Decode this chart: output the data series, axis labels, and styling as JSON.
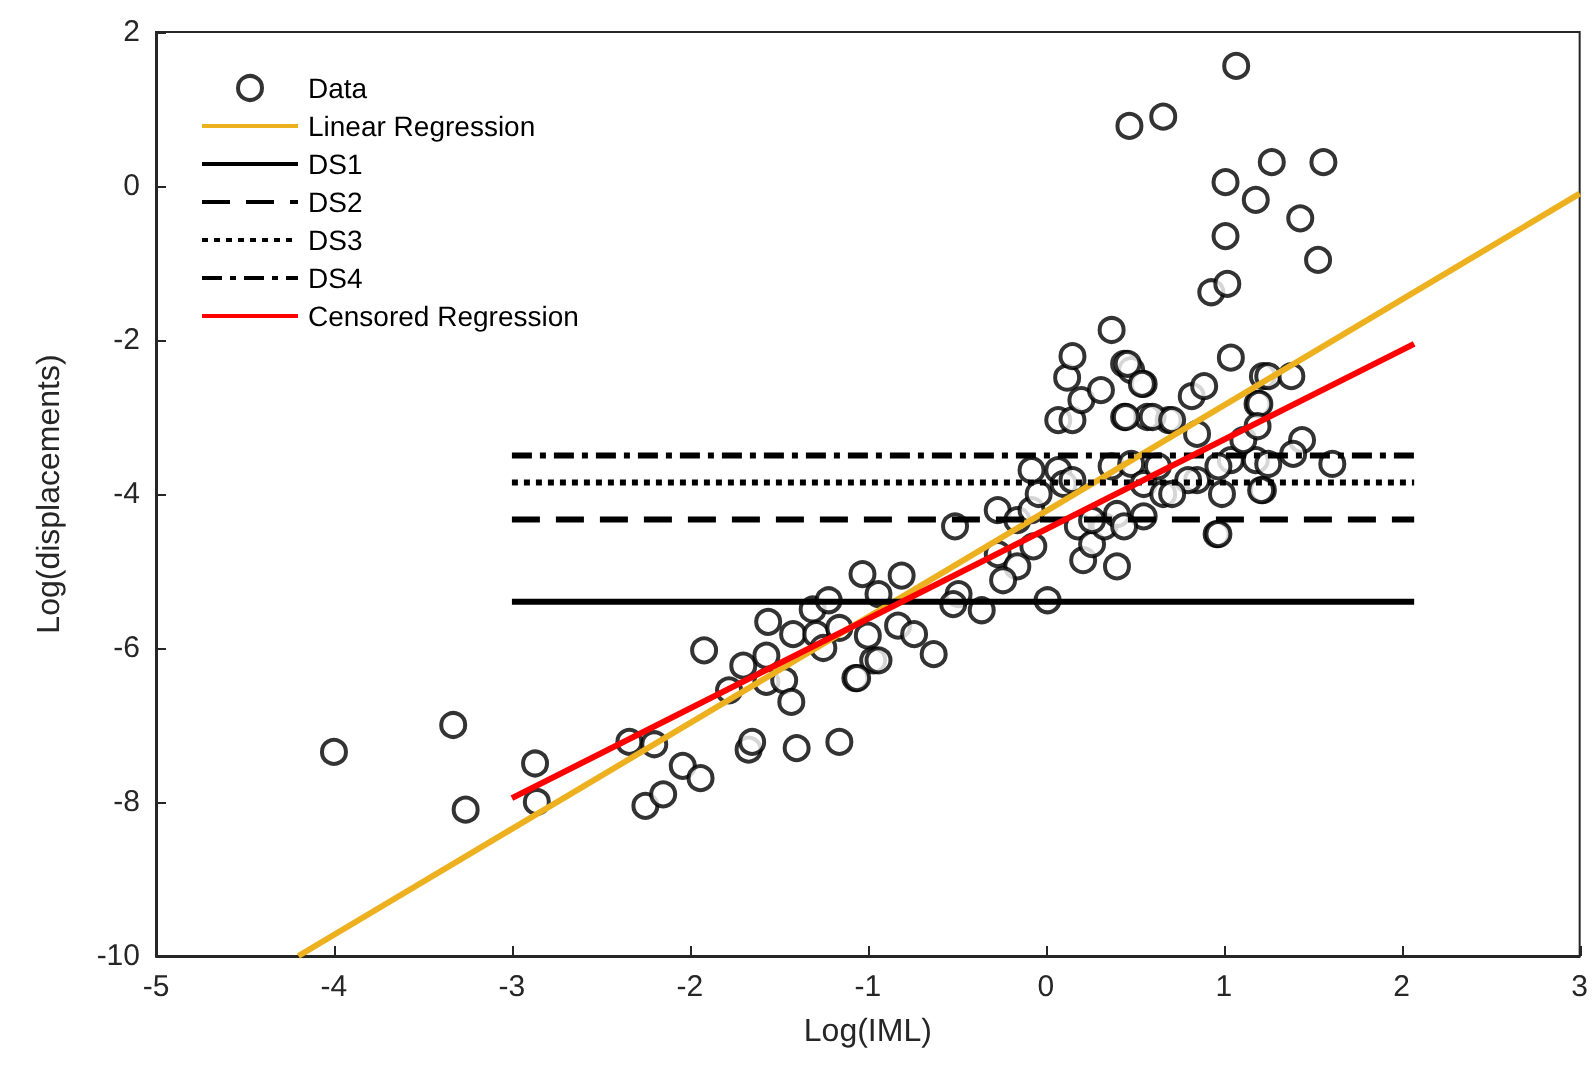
{
  "chart_data": {
    "type": "scatter",
    "xlabel": "Log(IML)",
    "ylabel": "Log(displacements)",
    "xlim": [
      -5,
      3
    ],
    "ylim": [
      -10,
      2
    ],
    "xticks": [
      -5,
      -4,
      -3,
      -2,
      -1,
      0,
      1,
      2,
      3
    ],
    "yticks": [
      -10,
      -8,
      -6,
      -4,
      -2,
      0,
      2
    ],
    "grid": false,
    "legend": "top left",
    "series": [
      {
        "name": "Data",
        "marker": "circle",
        "color": "#000000",
        "x": [
          -4.0,
          -3.33,
          -3.26,
          -2.87,
          -2.86,
          -2.34,
          -2.2,
          -2.25,
          -2.15,
          -2.04,
          -1.94,
          -1.92,
          -1.78,
          -1.7,
          -1.67,
          -1.65,
          -1.56,
          -1.57,
          -1.57,
          -1.47,
          -1.43,
          -1.4,
          -1.42,
          -1.31,
          -1.29,
          -1.25,
          -1.16,
          -1.07,
          -1.0,
          -0.97,
          -1.03,
          -1.22,
          -1.16,
          -0.94,
          -0.81,
          -0.83,
          -0.74,
          -0.63,
          -0.94,
          -1.06,
          -0.49,
          -0.52,
          -0.36,
          -0.51,
          -0.27,
          -0.16,
          -0.08,
          -0.27,
          -0.16,
          -0.24,
          -0.07,
          0.01,
          -0.08,
          0.07,
          0.1,
          0.18,
          0.21,
          0.26,
          0.33,
          0.4,
          0.37,
          0.48,
          0.55,
          0.66,
          0.63,
          0.85,
          0.96,
          1.04,
          1.18,
          1.22,
          0.07,
          0.15,
          0.44,
          0.57,
          0.69,
          0.85,
          0.82,
          0.89,
          1.04,
          1.22,
          1.19,
          0.2,
          0.31,
          0.12,
          0.15,
          0.37,
          0.44,
          0.48,
          0.55,
          0.15,
          0.4,
          0.26,
          -0.04,
          1.07,
          0.47,
          0.66,
          1.27,
          1.56,
          1.01,
          1.18,
          1.43,
          1.01,
          1.53,
          0.93,
          1.02,
          1.25,
          1.38,
          1.2,
          0.46,
          0.54,
          0.45,
          0.6,
          0.71,
          1.11,
          1.19,
          1.44,
          1.39,
          1.61,
          0.97,
          1.25,
          0.8,
          0.99,
          1.21,
          0.71,
          0.55,
          0.97,
          0.44
        ],
        "values": [
          -7.35,
          -7.0,
          -8.1,
          -7.5,
          -8.0,
          -7.22,
          -7.25,
          -8.05,
          -7.9,
          -7.53,
          -7.69,
          -6.03,
          -6.55,
          -6.23,
          -7.32,
          -7.22,
          -5.66,
          -6.1,
          -6.44,
          -6.42,
          -6.7,
          -7.3,
          -5.82,
          -5.5,
          -5.82,
          -6.0,
          -7.22,
          -6.39,
          -5.84,
          -6.16,
          -5.04,
          -5.38,
          -5.74,
          -5.3,
          -5.06,
          -5.71,
          -5.82,
          -6.08,
          -6.16,
          -6.39,
          -5.3,
          -5.43,
          -5.51,
          -4.42,
          -4.21,
          -4.34,
          -4.21,
          -4.78,
          -4.94,
          -5.12,
          -4.68,
          -5.38,
          -3.69,
          -3.69,
          -3.87,
          -4.42,
          -4.86,
          -4.65,
          -4.42,
          -4.26,
          -3.64,
          -3.61,
          -3.87,
          -4.0,
          -3.64,
          -3.82,
          -4.52,
          -3.56,
          -3.56,
          -3.95,
          -3.04,
          -3.04,
          -3.0,
          -3.0,
          -3.04,
          -3.22,
          -2.73,
          -2.6,
          -2.23,
          -2.47,
          -2.83,
          -2.78,
          -2.65,
          -2.49,
          -2.21,
          -1.87,
          -2.31,
          -2.39,
          -2.57,
          -3.82,
          -4.94,
          -4.34,
          -4.0,
          1.56,
          0.78,
          0.9,
          0.31,
          0.31,
          0.05,
          -0.18,
          -0.42,
          -0.65,
          -0.96,
          -1.38,
          -1.27,
          -2.47,
          -2.47,
          -2.83,
          -2.31,
          -2.57,
          -3.0,
          -3.0,
          -3.04,
          -3.3,
          -3.12,
          -3.3,
          -3.48,
          -3.61,
          -3.64,
          -3.61,
          -3.82,
          -4.0,
          -3.95,
          -4.0,
          -4.29,
          -4.52,
          -4.42
        ]
      },
      {
        "name": "Linear Regression",
        "type": "line",
        "color": "#edb120",
        "line_style": "solid",
        "x": [
          -4.2,
          3
        ],
        "values": [
          -10,
          -0.1
        ]
      },
      {
        "name": "DS1",
        "type": "line",
        "color": "#000000",
        "line_style": "solid",
        "x": [
          -3,
          2.07
        ],
        "values": [
          -5.4,
          -5.4
        ]
      },
      {
        "name": "DS2",
        "type": "line",
        "color": "#000000",
        "line_style": "dashed",
        "x": [
          -3,
          2.07
        ],
        "values": [
          -4.33,
          -4.33
        ]
      },
      {
        "name": "DS3",
        "type": "line",
        "color": "#000000",
        "line_style": "dotted",
        "x": [
          -3,
          2.07
        ],
        "values": [
          -3.85,
          -3.85
        ]
      },
      {
        "name": "DS4",
        "type": "line",
        "color": "#000000",
        "line_style": "dashdot",
        "x": [
          -3,
          2.07
        ],
        "values": [
          -3.5,
          -3.5
        ]
      },
      {
        "name": "Censored Regression",
        "type": "line",
        "color": "#ff0000",
        "line_style": "solid",
        "x": [
          -3,
          2.07
        ],
        "values": [
          -7.95,
          -2.05
        ]
      }
    ]
  }
}
